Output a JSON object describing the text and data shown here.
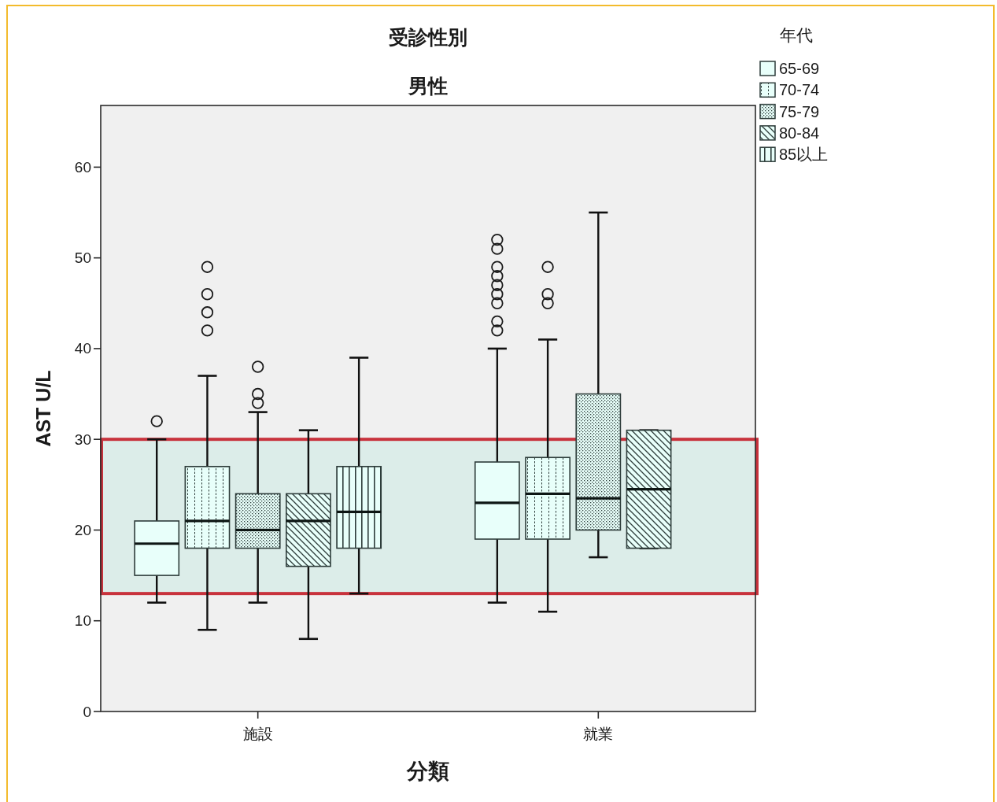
{
  "chart_data": {
    "type": "box",
    "title": "受診性別",
    "subtitle": "男性",
    "xlabel": "分類",
    "ylabel": "AST U/L",
    "legend_title": "年代",
    "categories": [
      "施設",
      "就業"
    ],
    "series": [
      {
        "name": "65-69",
        "color": "#2e3d3b",
        "boxes": [
          {
            "low": 12,
            "q1": 15,
            "median": 18.5,
            "q3": 21,
            "high": 30,
            "outliers": [
              32
            ]
          },
          {
            "low": 12,
            "q1": 19,
            "median": 23,
            "q3": 27.5,
            "high": 40,
            "outliers": [
              42,
              43,
              45,
              46,
              47,
              48,
              49,
              51,
              52
            ]
          }
        ]
      },
      {
        "name": "70-74",
        "color": "#2e3d3b",
        "boxes": [
          {
            "low": 9,
            "q1": 18,
            "median": 21,
            "q3": 27,
            "high": 37,
            "outliers": [
              42,
              44,
              46,
              49
            ]
          },
          {
            "low": 11,
            "q1": 19,
            "median": 24,
            "q3": 28,
            "high": 41,
            "outliers": [
              45,
              46,
              49
            ]
          }
        ]
      },
      {
        "name": "75-79",
        "color": "#2e3d3b",
        "boxes": [
          {
            "low": 12,
            "q1": 18,
            "median": 20,
            "q3": 24,
            "high": 33,
            "outliers": [
              34,
              35,
              38
            ]
          },
          {
            "low": 17,
            "q1": 20,
            "median": 23.5,
            "q3": 35,
            "high": 55
          }
        ]
      },
      {
        "name": "80-84",
        "color": "#2e3d3b",
        "boxes": [
          {
            "low": 8,
            "q1": 16,
            "median": 21,
            "q3": 24,
            "high": 31
          },
          {
            "low": 18,
            "q1": 18,
            "median": 24.5,
            "q3": 31,
            "high": 31
          }
        ]
      },
      {
        "name": "85以上",
        "color": "#2e3d3b",
        "boxes": [
          {
            "low": 13,
            "q1": 18,
            "median": 22,
            "q3": 27,
            "high": 39
          },
          null
        ]
      }
    ],
    "ylim": [
      0,
      66.8
    ],
    "yticks": [
      0,
      10,
      20,
      30,
      40,
      50,
      60
    ],
    "legend": "top right",
    "bands": [
      {
        "axis": "y",
        "from": 13,
        "to": 30,
        "color": "#c8323c"
      }
    ]
  }
}
